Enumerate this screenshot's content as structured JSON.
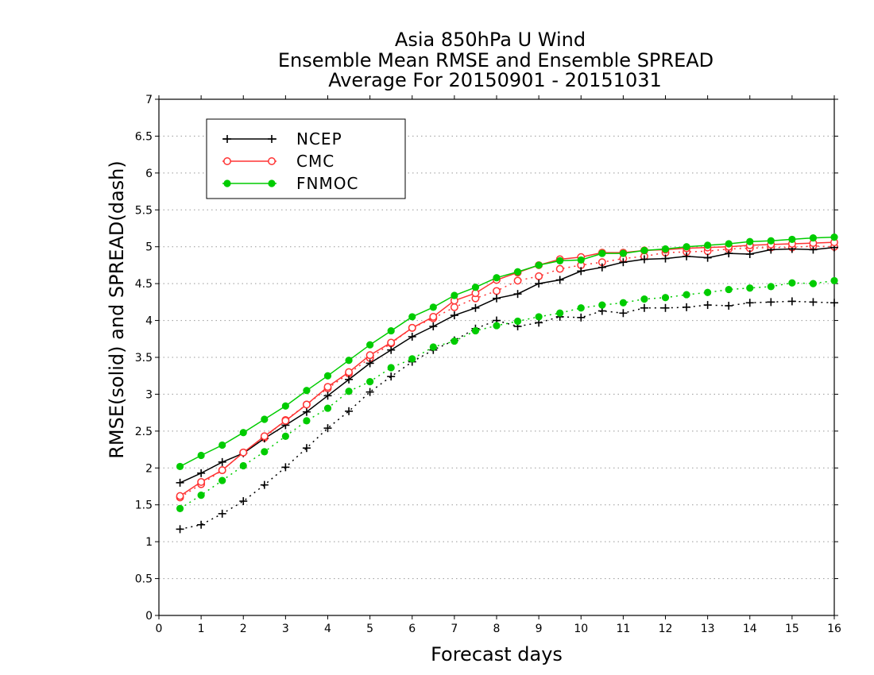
{
  "chart_data": {
    "type": "line",
    "title": [
      "Asia 850hPa U Wind",
      "Ensemble Mean RMSE and Ensemble SPREAD",
      "Average For 20150901 - 20151031"
    ],
    "xlabel": "Forecast days",
    "ylabel": "RMSE(solid) and SPREAD(dash)",
    "xlim": [
      0,
      16
    ],
    "ylim": [
      0,
      7
    ],
    "xticks": [
      "0",
      "1",
      "2",
      "3",
      "4",
      "5",
      "6",
      "7",
      "8",
      "9",
      "10",
      "11",
      "12",
      "13",
      "14",
      "15",
      "16"
    ],
    "yticks": [
      "0",
      "0.5",
      "1",
      "1.5",
      "2",
      "2.5",
      "3",
      "3.5",
      "4",
      "4.5",
      "5",
      "5.5",
      "6",
      "6.5",
      "7"
    ],
    "grid": "horizontal dotted",
    "legend_position": "top-left",
    "x": [
      0.5,
      1,
      1.5,
      2,
      2.5,
      3,
      3.5,
      4,
      4.5,
      5,
      5.5,
      6,
      6.5,
      7,
      7.5,
      8,
      8.5,
      9,
      9.5,
      10,
      10.5,
      11,
      11.5,
      12,
      12.5,
      13,
      13.5,
      14,
      14.5,
      15,
      15.5,
      16
    ],
    "series": [
      {
        "name": "NCEP",
        "color": "#000000",
        "marker": "plus",
        "rmse": [
          1.8,
          1.93,
          2.08,
          2.2,
          2.4,
          2.58,
          2.76,
          2.98,
          3.2,
          3.42,
          3.6,
          3.78,
          3.92,
          4.07,
          4.17,
          4.3,
          4.36,
          4.5,
          4.55,
          4.67,
          4.72,
          4.79,
          4.83,
          4.84,
          4.87,
          4.85,
          4.91,
          4.9,
          4.96,
          4.97,
          4.96,
          4.99
        ],
        "spread": [
          1.17,
          1.23,
          1.38,
          1.55,
          1.77,
          2.01,
          2.27,
          2.54,
          2.77,
          3.03,
          3.24,
          3.44,
          3.6,
          3.73,
          3.89,
          4.0,
          3.92,
          3.97,
          4.05,
          4.04,
          4.13,
          4.1,
          4.17,
          4.17,
          4.18,
          4.21,
          4.2,
          4.24,
          4.25,
          4.26,
          4.25,
          4.24
        ]
      },
      {
        "name": "CMC",
        "color": "#ff3333",
        "marker": "open-circle",
        "rmse": [
          1.62,
          1.81,
          1.97,
          2.21,
          2.43,
          2.64,
          2.86,
          3.1,
          3.3,
          3.53,
          3.7,
          3.9,
          4.05,
          4.27,
          4.37,
          4.55,
          4.65,
          4.75,
          4.83,
          4.86,
          4.92,
          4.92,
          4.95,
          4.96,
          4.98,
          4.99,
          5.0,
          5.02,
          5.03,
          5.04,
          5.05,
          5.06
        ],
        "spread": [
          1.6,
          1.78,
          1.97,
          2.21,
          2.41,
          2.65,
          2.86,
          3.08,
          3.28,
          3.49,
          3.69,
          3.9,
          4.03,
          4.18,
          4.3,
          4.4,
          4.54,
          4.6,
          4.7,
          4.75,
          4.79,
          4.84,
          4.87,
          4.92,
          4.93,
          4.94,
          4.97,
          4.98,
          4.99,
          4.99,
          5.01,
          5.0
        ]
      },
      {
        "name": "FNMOC",
        "color": "#00cc00",
        "marker": "filled-circle",
        "rmse": [
          2.02,
          2.17,
          2.31,
          2.48,
          2.66,
          2.84,
          3.05,
          3.25,
          3.46,
          3.67,
          3.86,
          4.05,
          4.18,
          4.34,
          4.45,
          4.58,
          4.66,
          4.75,
          4.81,
          4.82,
          4.91,
          4.91,
          4.95,
          4.97,
          5.0,
          5.02,
          5.04,
          5.07,
          5.08,
          5.1,
          5.12,
          5.13
        ],
        "spread": [
          1.45,
          1.63,
          1.83,
          2.03,
          2.22,
          2.43,
          2.64,
          2.81,
          3.04,
          3.17,
          3.36,
          3.48,
          3.64,
          3.72,
          3.86,
          3.93,
          3.99,
          4.05,
          4.1,
          4.17,
          4.21,
          4.24,
          4.29,
          4.31,
          4.35,
          4.38,
          4.42,
          4.44,
          4.46,
          4.51,
          4.5,
          4.54
        ]
      }
    ]
  }
}
